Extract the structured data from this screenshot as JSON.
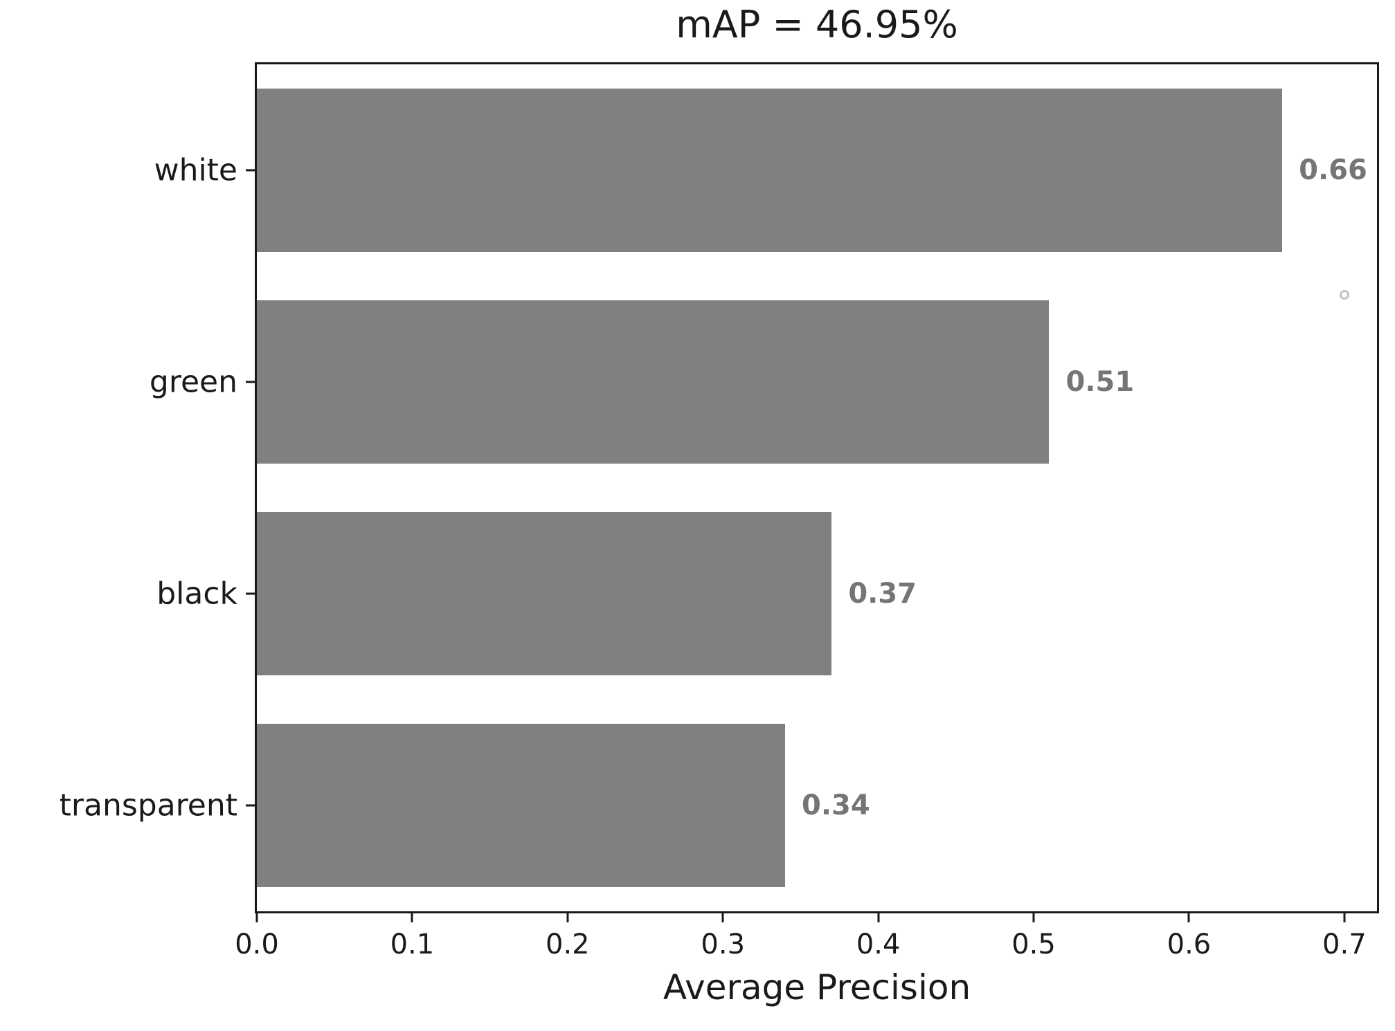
{
  "chart_data": {
    "type": "bar",
    "orientation": "horizontal",
    "title": "mAP = 46.95%",
    "xlabel": "Average Precision",
    "categories": [
      "white",
      "green",
      "black",
      "transparent"
    ],
    "values": [
      0.66,
      0.51,
      0.37,
      0.34
    ],
    "value_labels": [
      "0.66",
      "0.51",
      "0.37",
      "0.34"
    ],
    "xticks": [
      0.0,
      0.1,
      0.2,
      0.3,
      0.4,
      0.5,
      0.6,
      0.7
    ],
    "xtick_labels": [
      "0.0",
      "0.1",
      "0.2",
      "0.3",
      "0.4",
      "0.5",
      "0.6",
      "0.7"
    ],
    "xlim": [
      0,
      0.721
    ],
    "grid": false,
    "legend": null,
    "bar_color": "#808080",
    "value_label_color": "#757575",
    "axis_color": "#1a1a1a",
    "bar_band_fraction": 0.77,
    "stray_marker": {
      "x": 0.7,
      "y_fraction": 0.272
    }
  }
}
